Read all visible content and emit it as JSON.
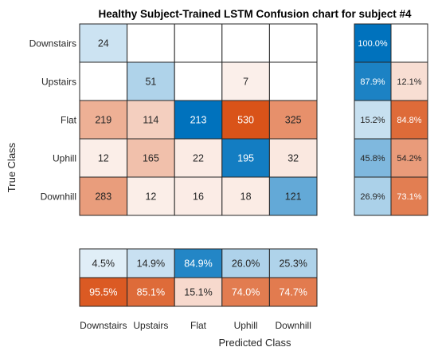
{
  "chart_data": {
    "type": "heatmap",
    "title": "Healthy Subject-Trained LSTM Confusion chart for subject #4",
    "xlabel": "Predicted Class",
    "ylabel": "True Class",
    "classes": [
      "Downstairs",
      "Upstairs",
      "Flat",
      "Uphill",
      "Downhill"
    ],
    "matrix": [
      [
        24,
        0,
        0,
        0,
        0
      ],
      [
        0,
        51,
        0,
        7,
        0
      ],
      [
        219,
        114,
        213,
        530,
        325
      ],
      [
        12,
        165,
        22,
        195,
        32
      ],
      [
        283,
        12,
        16,
        18,
        121
      ]
    ],
    "row_summary": {
      "correct": [
        "100.0%",
        "87.9%",
        "15.2%",
        "45.8%",
        "26.9%"
      ],
      "incorrect": [
        "",
        "12.1%",
        "84.8%",
        "54.2%",
        "73.1%"
      ]
    },
    "column_summary": {
      "correct": [
        "4.5%",
        "14.9%",
        "84.9%",
        "26.0%",
        "25.3%"
      ],
      "incorrect": [
        "95.5%",
        "85.1%",
        "15.1%",
        "74.0%",
        "74.7%"
      ]
    },
    "colors": {
      "correct_max": "#0072BD",
      "incorrect_max": "#D95319",
      "background": "#ffffff",
      "grid": "#262626"
    }
  }
}
